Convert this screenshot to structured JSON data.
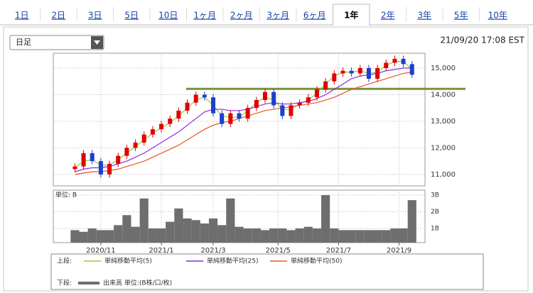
{
  "tabs": [
    "1日",
    "2日",
    "3日",
    "5日",
    "10日",
    "1ヶ月",
    "2ヶ月",
    "3ヶ月",
    "6ヶ月",
    "1年",
    "2年",
    "3年",
    "5年",
    "10年"
  ],
  "active_tab": 9,
  "period_select": "日足",
  "timestamp": "21/09/20 17:08 EST",
  "legend_groups": {
    "upper": "上段:",
    "lower": "下段:"
  },
  "chart_data": [
    {
      "type": "candlestick",
      "open": [
        11200,
        11300,
        11800,
        11500,
        11000,
        11400,
        11700,
        12000,
        12200,
        12500,
        12700,
        12900,
        13100,
        13400,
        13700,
        14000,
        13900,
        13300,
        12900,
        13300,
        13100,
        13500,
        13800,
        14100,
        13600,
        13200,
        13600,
        13700,
        13900,
        14200,
        14500,
        14800,
        14900,
        14800,
        15000,
        14600,
        15000,
        15200,
        15350,
        15150
      ],
      "high": [
        11420,
        11920,
        11920,
        11620,
        11520,
        11820,
        12120,
        12320,
        12620,
        12820,
        13020,
        13220,
        13520,
        13820,
        14120,
        14120,
        14020,
        13420,
        13420,
        13420,
        13620,
        13920,
        14220,
        14220,
        13720,
        13720,
        13820,
        14020,
        14320,
        14620,
        14920,
        15020,
        15020,
        15120,
        15120,
        15120,
        15320,
        15470,
        15470,
        15270
      ],
      "low": [
        11080,
        11180,
        11380,
        10880,
        10880,
        11280,
        11580,
        11880,
        12080,
        12380,
        12580,
        12780,
        12980,
        13280,
        13580,
        13780,
        13180,
        12780,
        12780,
        12980,
        12980,
        13380,
        13680,
        13480,
        13080,
        13080,
        13480,
        13580,
        13780,
        14080,
        14380,
        14680,
        14680,
        14680,
        14480,
        14480,
        14880,
        15080,
        15030,
        14630
      ],
      "close": [
        11300,
        11800,
        11500,
        11000,
        11400,
        11700,
        12000,
        12200,
        12500,
        12700,
        12900,
        13100,
        13400,
        13700,
        14000,
        13900,
        13300,
        12900,
        13300,
        13100,
        13500,
        13800,
        14100,
        13600,
        13200,
        13600,
        13700,
        13900,
        14200,
        14500,
        14800,
        14900,
        14800,
        15000,
        14600,
        15000,
        15200,
        15350,
        15150,
        14750
      ],
      "up_color": "#e00000",
      "down_color": "#1c3fd0",
      "series": [
        {
          "name": "単純移動平均(5)",
          "color": "#9acd32",
          "values": [
            11250,
            11500,
            11550,
            11350,
            11350,
            11550,
            11800,
            12050,
            12300,
            12550,
            12750,
            12950,
            13200,
            13500,
            13800,
            13900,
            13600,
            13200,
            13150,
            13150,
            13400,
            13700,
            13900,
            13800,
            13450,
            13450,
            13650,
            13800,
            14050,
            14400,
            14700,
            14850,
            14850,
            14900,
            14800,
            14850,
            15100,
            15250,
            15250,
            14950
          ]
        },
        {
          "name": "単純移動平均(25)",
          "color": "#8a2be2",
          "values": [
            11100,
            11200,
            11250,
            11250,
            11300,
            11400,
            11500,
            11650,
            11800,
            12000,
            12200,
            12400,
            12600,
            12850,
            13100,
            13350,
            13450,
            13450,
            13400,
            13400,
            13450,
            13550,
            13650,
            13700,
            13650,
            13650,
            13700,
            13750,
            13850,
            14000,
            14200,
            14400,
            14600,
            14700,
            14750,
            14800,
            14900,
            14950,
            15000,
            15000
          ]
        },
        {
          "name": "単純移動平均(50)",
          "color": "#e8552a",
          "values": [
            11000,
            11050,
            11100,
            11100,
            11150,
            11200,
            11300,
            11400,
            11500,
            11650,
            11800,
            11950,
            12100,
            12300,
            12500,
            12700,
            12850,
            12950,
            13000,
            13100,
            13200,
            13300,
            13400,
            13450,
            13500,
            13550,
            13600,
            13650,
            13700,
            13800,
            13900,
            14050,
            14200,
            14300,
            14400,
            14500,
            14600,
            14700,
            14800,
            14850
          ]
        }
      ],
      "level_line": {
        "value": 14220,
        "color": "#77933c"
      },
      "xlim": [
        -2.5,
        40.5
      ],
      "ylim": [
        10570,
        15560
      ],
      "yticks": [
        {
          "value": 11000,
          "label": "11,000"
        },
        {
          "value": 12000,
          "label": "12,000"
        },
        {
          "value": 13000,
          "label": "13,000"
        },
        {
          "value": 14000,
          "label": "14,000"
        },
        {
          "value": 15000,
          "label": "15,000"
        }
      ],
      "grid": true
    },
    {
      "type": "bar",
      "unit_label": "単位: B",
      "series": [
        {
          "name": "出来高 単位:(B株/口/枚)",
          "color": "#6e6e6e",
          "values": [
            0.9,
            0.8,
            1.0,
            0.9,
            0.9,
            1.2,
            1.8,
            1.1,
            2.8,
            1.0,
            1.0,
            1.4,
            2.2,
            1.6,
            1.5,
            1.3,
            1.6,
            1.2,
            2.8,
            1.1,
            1.0,
            1.0,
            0.9,
            1.0,
            1.0,
            0.9,
            1.0,
            1.1,
            1.0,
            3.0,
            1.0,
            0.9,
            0.9,
            0.9,
            0.9,
            0.9,
            0.9,
            1.0,
            1.0,
            2.7
          ]
        }
      ],
      "xlim": [
        -2.5,
        40.5
      ],
      "xticks": [
        {
          "value": 3,
          "label": "2020/11"
        },
        {
          "value": 10,
          "label": "2021/1"
        },
        {
          "value": 16,
          "label": "2021/3"
        },
        {
          "value": 23.5,
          "label": "2021/5"
        },
        {
          "value": 30.5,
          "label": "2021/7"
        },
        {
          "value": 37.5,
          "label": "2021/9"
        }
      ],
      "ylim": [
        0.15,
        3.3
      ],
      "yticks": [
        {
          "value": 1,
          "label": "1B"
        },
        {
          "value": 2,
          "label": "2B"
        },
        {
          "value": 3,
          "label": "3B"
        }
      ],
      "grid": true
    }
  ]
}
